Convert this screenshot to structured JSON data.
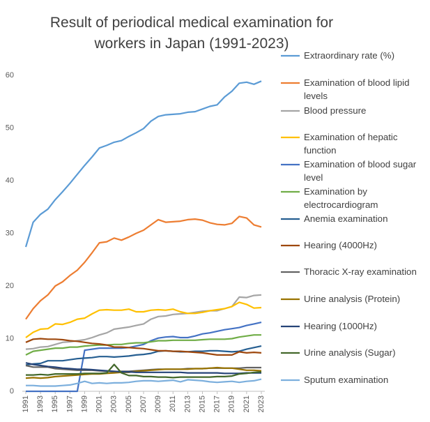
{
  "chart_data": {
    "type": "line",
    "title": "Result of periodical medical examination for workers in Japan (1991-2023)",
    "x": [
      1991,
      1992,
      1993,
      1994,
      1995,
      1996,
      1997,
      1998,
      1999,
      2000,
      2001,
      2002,
      2003,
      2004,
      2005,
      2006,
      2007,
      2008,
      2009,
      2010,
      2011,
      2012,
      2013,
      2014,
      2015,
      2016,
      2017,
      2018,
      2019,
      2020,
      2021,
      2022,
      2023
    ],
    "xlim": [
      1991,
      2023
    ],
    "xticks": [
      1991,
      1993,
      1995,
      1997,
      1999,
      2001,
      2003,
      2005,
      2007,
      2009,
      2011,
      2013,
      2015,
      2017,
      2019,
      2021,
      2023
    ],
    "ylim": [
      0,
      60
    ],
    "yticks": [
      0,
      10,
      20,
      30,
      40,
      50,
      60
    ],
    "grid": false,
    "legend": "right",
    "series": [
      {
        "name": "Extraordinary rate (%)",
        "color": "#5B9BD5",
        "values": [
          27.4,
          32.1,
          33.6,
          34.6,
          36.4,
          37.9,
          39.5,
          41.2,
          42.9,
          44.5,
          46.2,
          46.7,
          47.3,
          47.6,
          48.4,
          49.1,
          49.9,
          51.3,
          52.2,
          52.5,
          52.6,
          52.7,
          53.0,
          53.1,
          53.6,
          54.1,
          54.4,
          55.9,
          57.0,
          58.5,
          58.7,
          58.3,
          58.9
        ]
      },
      {
        "name": "Examination of blood lipid levels",
        "color": "#ED7D31",
        "values": [
          13.7,
          15.7,
          17.2,
          18.3,
          20.0,
          20.8,
          22.0,
          23.0,
          24.5,
          26.3,
          28.2,
          28.4,
          29.1,
          28.7,
          29.3,
          30.0,
          30.6,
          31.6,
          32.6,
          32.1,
          32.2,
          32.3,
          32.6,
          32.7,
          32.5,
          32.0,
          31.7,
          31.6,
          31.9,
          33.2,
          32.9,
          31.6,
          31.2
        ]
      },
      {
        "name": "Blood pressure",
        "color": "#A5A5A5",
        "values": [
          8.0,
          8.1,
          8.4,
          8.5,
          8.9,
          9.3,
          9.4,
          9.6,
          9.8,
          10.2,
          10.7,
          11.1,
          11.8,
          12.0,
          12.2,
          12.5,
          12.8,
          13.7,
          14.2,
          14.3,
          14.6,
          14.7,
          14.8,
          15.0,
          15.2,
          15.3,
          15.3,
          15.7,
          16.1,
          17.9,
          17.8,
          18.2,
          18.3
        ]
      },
      {
        "name": "Examination of hepatic function",
        "color": "#FFC000",
        "values": [
          10.2,
          11.2,
          11.8,
          11.9,
          12.8,
          12.7,
          13.1,
          13.7,
          13.9,
          14.7,
          15.4,
          15.5,
          15.4,
          15.4,
          15.6,
          15.1,
          15.1,
          15.4,
          15.5,
          15.4,
          15.6,
          15.1,
          14.8,
          14.8,
          15.0,
          15.3,
          15.5,
          15.7,
          16.1,
          16.9,
          16.5,
          15.8,
          15.9
        ]
      },
      {
        "name": "Examination of blood sugar level",
        "color": "#4472C4",
        "values": [
          0,
          0,
          0,
          0,
          0,
          0,
          0,
          0,
          7.8,
          8.0,
          8.2,
          8.2,
          8.2,
          8.2,
          8.3,
          8.6,
          8.9,
          9.6,
          10.1,
          10.3,
          10.4,
          10.2,
          10.2,
          10.5,
          10.9,
          11.1,
          11.4,
          11.7,
          11.9,
          12.1,
          12.5,
          12.8,
          13.1
        ]
      },
      {
        "name": "Examination by electrocardiogram",
        "color": "#70AD47",
        "values": [
          6.9,
          7.6,
          7.8,
          8.0,
          8.2,
          8.2,
          8.4,
          8.4,
          8.6,
          8.7,
          8.8,
          8.8,
          8.9,
          8.9,
          9.1,
          9.2,
          9.2,
          9.4,
          9.6,
          9.6,
          9.7,
          9.7,
          9.7,
          9.7,
          9.8,
          9.9,
          9.9,
          9.9,
          10.0,
          10.3,
          10.5,
          10.7,
          10.7
        ]
      },
      {
        "name": "Anemia examination",
        "color": "#255E91",
        "values": [
          5.0,
          5.2,
          5.3,
          5.8,
          5.8,
          5.8,
          6.0,
          6.2,
          6.3,
          6.4,
          6.6,
          6.6,
          6.5,
          6.6,
          6.7,
          6.9,
          7.0,
          7.2,
          7.6,
          7.7,
          7.6,
          7.5,
          7.5,
          7.6,
          7.6,
          7.7,
          7.7,
          7.6,
          7.5,
          7.6,
          8.0,
          8.3,
          8.6
        ]
      },
      {
        "name": "Hearing (4000Hz)",
        "color": "#9E480E",
        "values": [
          9.3,
          9.9,
          10.0,
          9.9,
          9.9,
          9.8,
          9.6,
          9.5,
          9.3,
          9.1,
          9.0,
          8.8,
          8.4,
          8.4,
          8.3,
          8.2,
          8.1,
          7.9,
          7.7,
          7.7,
          7.6,
          7.6,
          7.5,
          7.4,
          7.3,
          7.1,
          6.9,
          6.9,
          6.9,
          7.5,
          7.3,
          7.4,
          7.3
        ]
      },
      {
        "name": "Thoracic X-ray examination",
        "color": "#636363",
        "values": [
          4.9,
          4.6,
          4.6,
          4.6,
          4.3,
          4.2,
          4.1,
          4.0,
          4.0,
          4.0,
          3.9,
          3.8,
          3.7,
          3.8,
          3.8,
          3.9,
          4.0,
          4.1,
          4.2,
          4.2,
          4.2,
          4.2,
          4.3,
          4.3,
          4.3,
          4.4,
          4.4,
          4.4,
          4.4,
          4.4,
          4.5,
          4.5,
          4.5
        ]
      },
      {
        "name": "Urine analysis (Protein)",
        "color": "#997300",
        "values": [
          2.5,
          2.6,
          2.5,
          2.6,
          2.8,
          2.9,
          3.0,
          3.1,
          3.2,
          3.3,
          3.3,
          3.4,
          3.5,
          3.6,
          3.6,
          3.8,
          3.9,
          4.0,
          4.1,
          4.2,
          4.2,
          4.2,
          4.2,
          4.3,
          4.3,
          4.4,
          4.5,
          4.4,
          4.4,
          4.2,
          4.0,
          4.0,
          3.9
        ]
      },
      {
        "name": "Hearing (1000Hz)",
        "color": "#264478",
        "values": [
          5.4,
          5.1,
          4.9,
          4.7,
          4.6,
          4.4,
          4.3,
          4.2,
          4.2,
          4.1,
          4.0,
          3.9,
          3.8,
          3.7,
          3.7,
          3.6,
          3.6,
          3.6,
          3.6,
          3.6,
          3.6,
          3.6,
          3.5,
          3.5,
          3.5,
          3.5,
          3.5,
          3.4,
          3.4,
          3.4,
          3.5,
          3.5,
          3.5
        ]
      },
      {
        "name": "Urine analysis (Sugar)",
        "color": "#43682B",
        "values": [
          3.1,
          3.1,
          3.2,
          3.1,
          3.3,
          3.3,
          3.3,
          3.3,
          3.4,
          3.4,
          3.4,
          3.5,
          5.1,
          3.5,
          3.0,
          3.0,
          2.8,
          2.8,
          2.7,
          2.7,
          2.6,
          2.7,
          2.7,
          2.7,
          2.7,
          2.7,
          2.8,
          2.8,
          2.9,
          3.3,
          3.4,
          3.6,
          3.7
        ]
      },
      {
        "name": "Sputum examination",
        "color": "#7CAFDD",
        "values": [
          1.1,
          1.1,
          1.0,
          1.0,
          1.0,
          1.1,
          1.2,
          1.5,
          1.9,
          1.5,
          1.6,
          1.5,
          1.6,
          1.6,
          1.7,
          1.9,
          2.0,
          2.0,
          1.9,
          2.0,
          2.1,
          1.8,
          2.2,
          2.1,
          2.0,
          1.8,
          1.7,
          1.8,
          1.9,
          1.7,
          1.9,
          2.0,
          2.3
        ]
      }
    ]
  }
}
